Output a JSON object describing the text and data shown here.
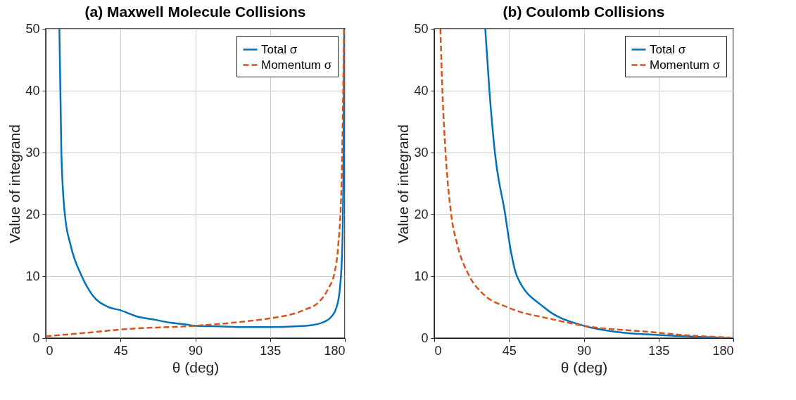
{
  "chart_data": [
    {
      "type": "line",
      "title": "(a) Maxwell Molecule Collisions",
      "xlabel": "θ (deg)",
      "ylabel": "Value of integrand",
      "xlim": [
        0,
        180
      ],
      "xticks": [
        0,
        45,
        90,
        135,
        180
      ],
      "ylim": [
        0,
        50
      ],
      "yticks": [
        0,
        10,
        20,
        30,
        40,
        50
      ],
      "grid": true,
      "legend": "top right",
      "series": [
        {
          "name": "Total σ",
          "color": "#0072bd",
          "line_style": "solid",
          "x": [
            8.2,
            9.4,
            11.5,
            15,
            21.7,
            28,
            38,
            45,
            55,
            65,
            75,
            85,
            90,
            105,
            120,
            135,
            150,
            160,
            168,
            172,
            175,
            177,
            178.5,
            179.2,
            179.6
          ],
          "values": [
            50,
            30,
            20,
            15,
            10,
            7,
            5,
            4.5,
            3.5,
            3,
            2.5,
            2.2,
            2,
            1.9,
            1.8,
            1.8,
            1.9,
            2.1,
            2.7,
            3.5,
            5,
            8,
            15,
            30,
            50
          ]
        },
        {
          "name": "Momentum σ",
          "color": "#d95319",
          "line_style": "dashed",
          "x": [
            0,
            30,
            45,
            90,
            120,
            135,
            155,
            165,
            170,
            173.7,
            176,
            178,
            179.5
          ],
          "values": [
            0.3,
            1,
            1.4,
            2,
            2.7,
            3.2,
            4.5,
            6,
            8,
            10.5,
            15,
            25,
            50
          ]
        }
      ]
    },
    {
      "type": "line",
      "title": "(b) Coulomb Collisions",
      "xlabel": "θ (deg)",
      "ylabel": "Value of integrand",
      "xlim": [
        0,
        180
      ],
      "xticks": [
        0,
        45,
        90,
        135,
        180
      ],
      "ylim": [
        0,
        50
      ],
      "yticks": [
        0,
        10,
        20,
        30,
        40,
        50
      ],
      "grid": true,
      "legend": "top right",
      "series": [
        {
          "name": "Total σ",
          "color": "#0072bd",
          "line_style": "solid",
          "x": [
            30.7,
            33.2,
            36.5,
            42.7,
            45.5,
            49.8,
            66,
            90,
            110,
            135,
            160,
            180
          ],
          "values": [
            50,
            40,
            30,
            20,
            15,
            10,
            5,
            2,
            1,
            0.5,
            0.2,
            0
          ]
        },
        {
          "name": "Momentum σ",
          "color": "#d95319",
          "line_style": "dashed",
          "x": [
            3.7,
            4.9,
            6.8,
            10.2,
            14,
            21.2,
            30,
            44,
            72,
            90,
            130,
            150,
            178
          ],
          "values": [
            50,
            40,
            30,
            20,
            15,
            10,
            7,
            5,
            3,
            2,
            1,
            0.5,
            0.1
          ]
        }
      ]
    }
  ]
}
